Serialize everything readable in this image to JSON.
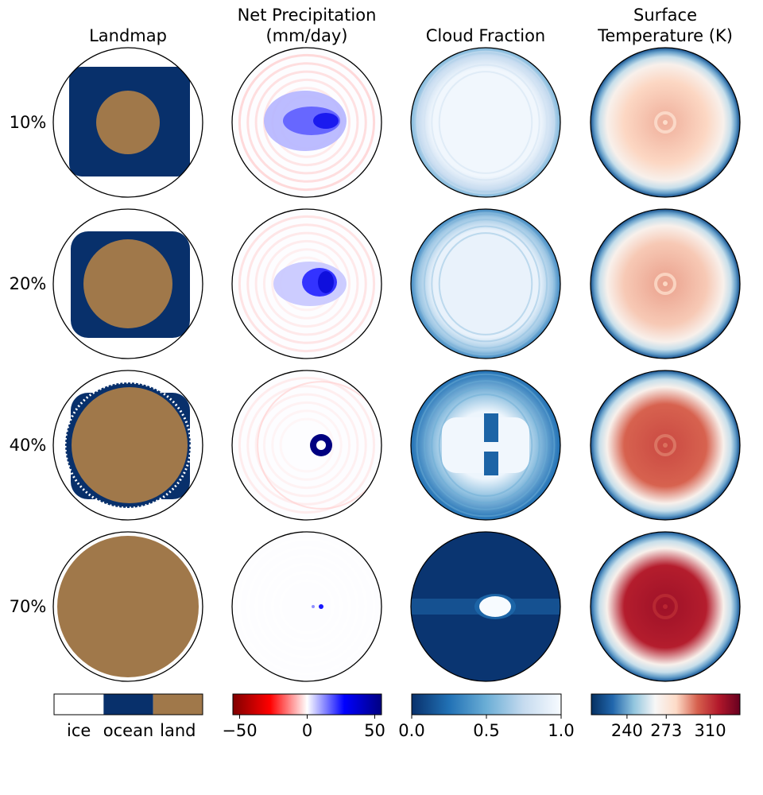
{
  "chart_data": {
    "type": "heatmap",
    "layout": "grid of polar disk maps",
    "columns": [
      {
        "key": "landmap",
        "title_lines": [
          "Landmap"
        ]
      },
      {
        "key": "precip",
        "title_lines": [
          "Net Precipitation",
          "(mm/day)"
        ]
      },
      {
        "key": "cloud",
        "title_lines": [
          "Cloud Fraction"
        ]
      },
      {
        "key": "temp",
        "title_lines": [
          "Surface",
          "Temperature (K)"
        ]
      }
    ],
    "rows": [
      {
        "label": "10%",
        "land_fraction": 0.1
      },
      {
        "label": "20%",
        "land_fraction": 0.2
      },
      {
        "label": "40%",
        "land_fraction": 0.4
      },
      {
        "label": "70%",
        "land_fraction": 0.7
      }
    ],
    "colorbars": {
      "landmap": {
        "kind": "categorical",
        "categories": [
          "ice",
          "ocean",
          "land"
        ],
        "colors": [
          "#ffffff",
          "#08306b",
          "#a0784a"
        ]
      },
      "precip": {
        "kind": "continuous",
        "cmap": "seismic_r",
        "range": [
          -55,
          55
        ],
        "ticks": [
          -50,
          0,
          50
        ],
        "tick_labels": [
          "−50",
          "0",
          "50"
        ],
        "stops": [
          "#800000",
          "#ff0000",
          "#ffffff",
          "#0000ff",
          "#000080"
        ]
      },
      "cloud": {
        "kind": "continuous",
        "cmap": "Blues_r",
        "range": [
          0.0,
          1.0
        ],
        "ticks": [
          0.0,
          0.5,
          1.0
        ],
        "tick_labels": [
          "0.0",
          "0.5",
          "1.0"
        ],
        "stops": [
          "#08306b",
          "#2171b5",
          "#6baed6",
          "#c6dbef",
          "#f7fbff"
        ]
      },
      "temp": {
        "kind": "continuous",
        "cmap": "RdBu_r",
        "range": [
          210,
          335
        ],
        "ticks": [
          240,
          273,
          310
        ],
        "tick_labels": [
          "240",
          "273",
          "310"
        ],
        "stops": [
          "#053061",
          "#2166ac",
          "#92c5de",
          "#f7f7f7",
          "#fddbc7",
          "#d6604d",
          "#b2182b",
          "#67001f"
        ]
      }
    },
    "panels": {
      "landmap": [
        {
          "land_radius": 0.43,
          "ocean_radius": 0.81
        },
        {
          "land_radius": 0.6,
          "ocean_radius": 0.8
        },
        {
          "land_radius": 0.81,
          "ocean_radius": 0.84
        },
        {
          "land_radius": 0.95,
          "ocean_radius": 0.95
        }
      ],
      "precip": [
        {
          "min": -8,
          "max": 32,
          "center": 18
        },
        {
          "min": -6,
          "max": 38,
          "center": 22
        },
        {
          "min": -4,
          "max": 55,
          "center": 50
        },
        {
          "min": 0,
          "max": 30,
          "center": 25
        }
      ],
      "cloud": [
        {
          "center": 0.97,
          "edge": 0.55
        },
        {
          "center": 0.93,
          "edge": 0.35
        },
        {
          "center": 0.95,
          "edge": 0.25
        },
        {
          "center": 1.0,
          "edge": 0.02
        }
      ],
      "temp": [
        {
          "center": 288,
          "edge": 220
        },
        {
          "center": 290,
          "edge": 220
        },
        {
          "center": 305,
          "edge": 220
        },
        {
          "center": 322,
          "edge": 222
        }
      ]
    }
  }
}
